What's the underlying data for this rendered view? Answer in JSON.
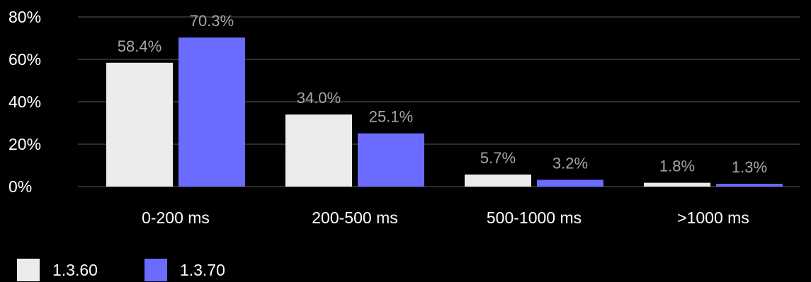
{
  "chart_data": {
    "type": "bar",
    "categories": [
      "0-200 ms",
      "200-500 ms",
      "500-1000 ms",
      ">1000 ms"
    ],
    "series": [
      {
        "name": "1.3.60",
        "values": [
          58.4,
          34.0,
          5.7,
          1.8
        ],
        "labels": [
          "58.4%",
          "34.0%",
          "5.7%",
          "1.8%"
        ],
        "color": "#ececec"
      },
      {
        "name": "1.3.70",
        "values": [
          70.3,
          25.1,
          3.2,
          1.3
        ],
        "labels": [
          "70.3%",
          "25.1%",
          "3.2%",
          "1.3%"
        ],
        "color": "#6b6bff"
      }
    ],
    "y_ticks": [
      "0%",
      "20%",
      "40%",
      "60%",
      "80%"
    ],
    "y_tick_values": [
      0,
      20,
      40,
      60,
      80
    ],
    "ylim": [
      0,
      80
    ],
    "grid": true,
    "legend_position": "bottom-left",
    "background": "#000000",
    "data_label_color": "#a6a6a6"
  }
}
